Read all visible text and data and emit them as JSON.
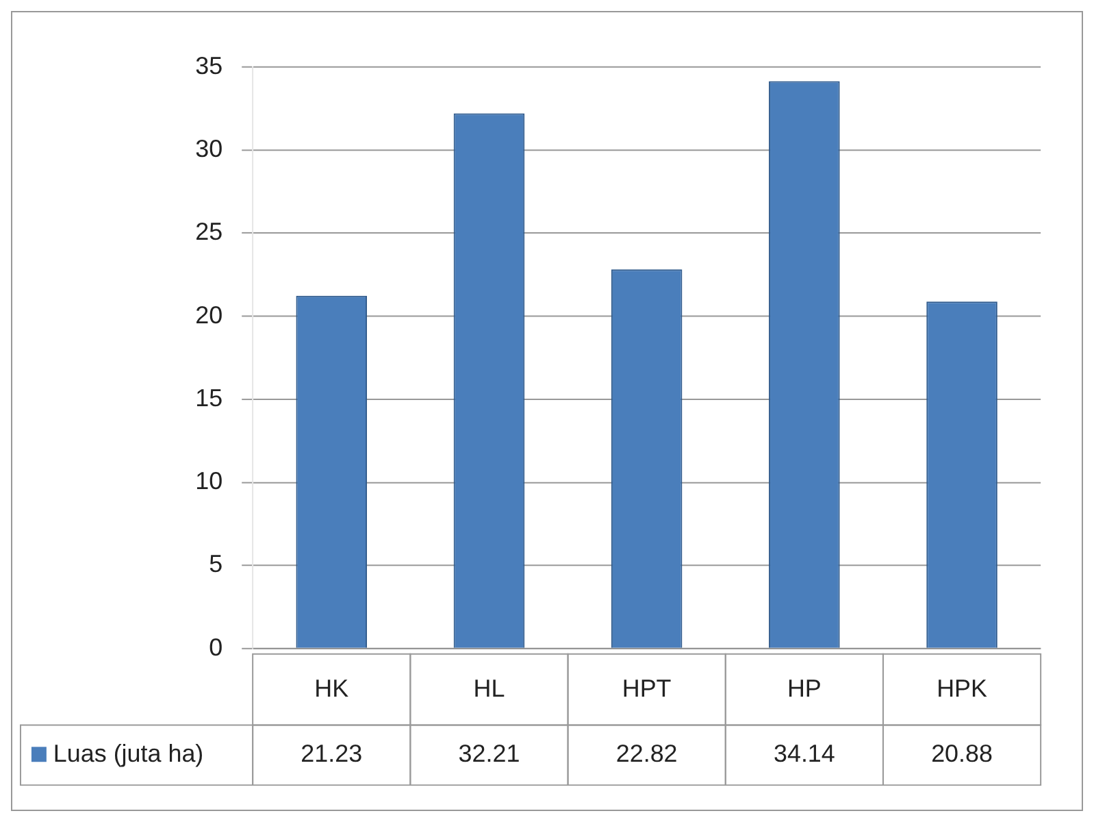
{
  "chart_data": {
    "type": "bar",
    "categories": [
      "HK",
      "HL",
      "HPT",
      "HP",
      "HPK"
    ],
    "series": [
      {
        "name": "Luas (juta ha)",
        "color": "#4a7ebb",
        "values": [
          21.23,
          32.21,
          22.82,
          34.14,
          20.88
        ]
      }
    ],
    "ylim": [
      0,
      35
    ],
    "yticks": [
      0,
      5,
      10,
      15,
      20,
      25,
      30,
      35
    ],
    "grid": "y",
    "legend": "bottom left",
    "data_labels": true
  }
}
